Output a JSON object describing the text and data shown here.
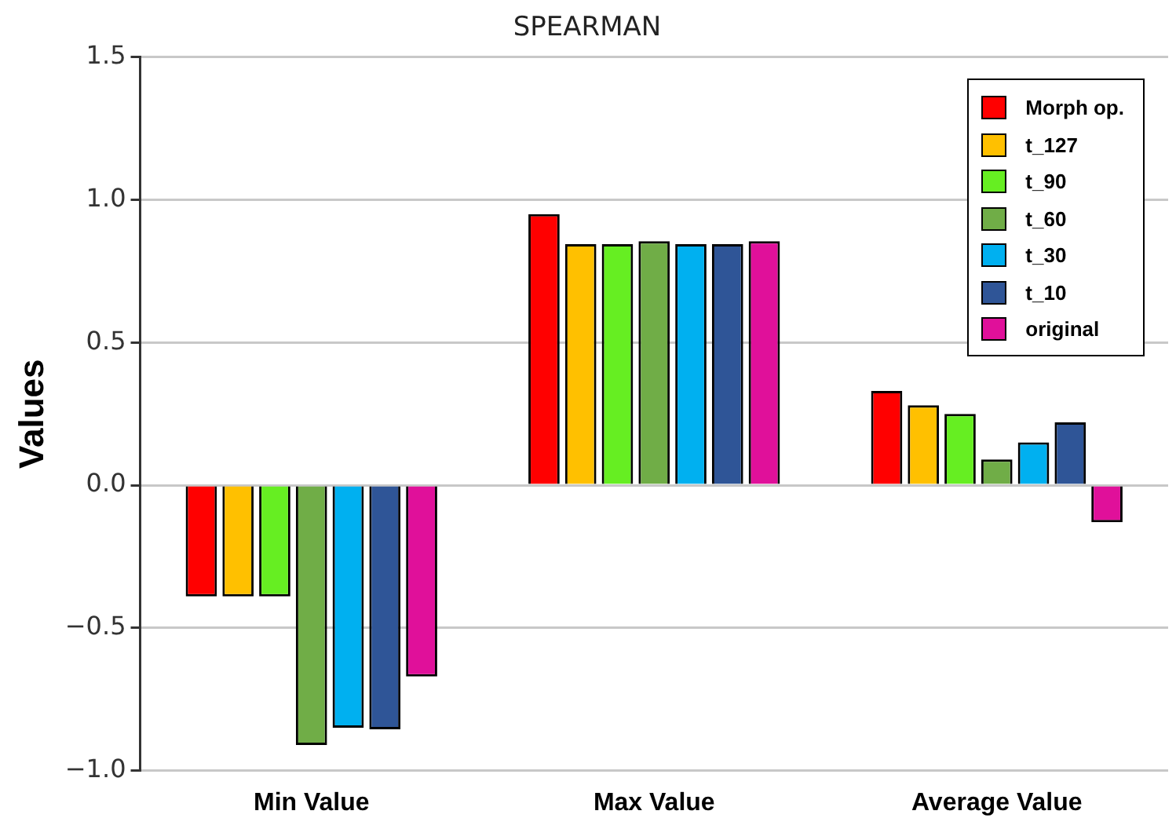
{
  "chart_data": {
    "type": "bar",
    "title": "SPEARMAN",
    "ylabel": "Values",
    "categories": [
      "Min Value",
      "Max Value",
      "Average Value"
    ],
    "series": [
      {
        "name": "Morph op.",
        "color": "#ff0000",
        "values": [
          -0.39,
          0.95,
          0.33
        ]
      },
      {
        "name": "t_127",
        "color": "#ffc000",
        "values": [
          -0.39,
          0.845,
          0.28
        ]
      },
      {
        "name": "t_90",
        "color": "#66ee22",
        "values": [
          -0.39,
          0.845,
          0.25
        ]
      },
      {
        "name": "t_60",
        "color": "#70ad47",
        "values": [
          -0.91,
          0.855,
          0.09
        ]
      },
      {
        "name": "t_30",
        "color": "#00b0f0",
        "values": [
          -0.85,
          0.845,
          0.15
        ]
      },
      {
        "name": "t_10",
        "color": "#2f5597",
        "values": [
          -0.855,
          0.845,
          0.22
        ]
      },
      {
        "name": "original",
        "color": "#e0109a",
        "values": [
          -0.67,
          0.855,
          -0.13
        ]
      }
    ],
    "ylim": [
      -1.0,
      1.5
    ],
    "yticks": [
      {
        "value": -1.0,
        "label": "−1.0"
      },
      {
        "value": -0.5,
        "label": "−0.5"
      },
      {
        "value": 0,
        "label": "0.0"
      },
      {
        "value": 0.5,
        "label": "0.5"
      },
      {
        "value": 1.0,
        "label": "1.0"
      },
      {
        "value": 1.5,
        "label": "1.5"
      }
    ],
    "grid": "y",
    "legend": "top right"
  }
}
